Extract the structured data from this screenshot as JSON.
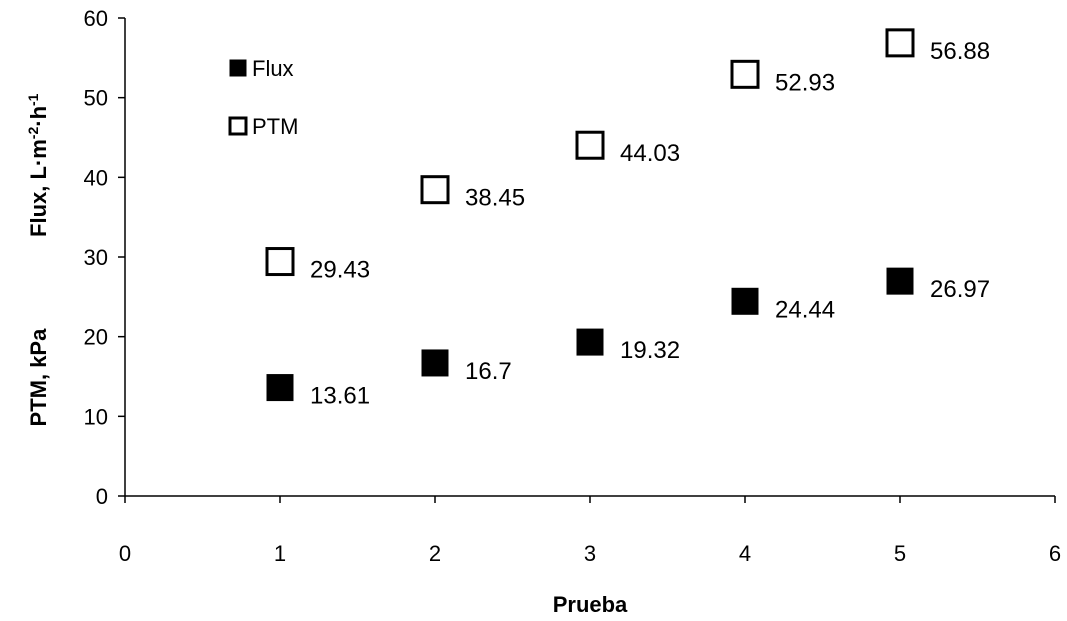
{
  "chart_data": {
    "type": "scatter",
    "xlabel": "Prueba",
    "ylabel_parts": {
      "ptm": "PTM, kPa",
      "flux_prefix": "Flux, L·m",
      "exp1": "-2",
      "mid": "·h",
      "exp2": "-1"
    },
    "xlim": [
      0,
      6
    ],
    "ylim": [
      0,
      60
    ],
    "x_ticks": [
      0,
      1,
      2,
      3,
      4,
      5,
      6
    ],
    "y_ticks": [
      0,
      10,
      20,
      30,
      40,
      50,
      60
    ],
    "grid": false,
    "legend_position": "top-left",
    "series": [
      {
        "name": "Flux",
        "marker": "filled-square",
        "color": "#000000",
        "x": [
          1,
          2,
          3,
          4,
          5
        ],
        "y": [
          13.61,
          16.7,
          19.32,
          24.44,
          26.97
        ],
        "labels": [
          "13.61",
          "16.7",
          "19.32",
          "24.44",
          "26.97"
        ]
      },
      {
        "name": "PTM",
        "marker": "open-square",
        "color": "#000000",
        "x": [
          1,
          2,
          3,
          4,
          5
        ],
        "y": [
          29.43,
          38.45,
          44.03,
          52.93,
          56.88
        ],
        "labels": [
          "29.43",
          "38.45",
          "44.03",
          "52.93",
          "56.88"
        ]
      }
    ]
  }
}
